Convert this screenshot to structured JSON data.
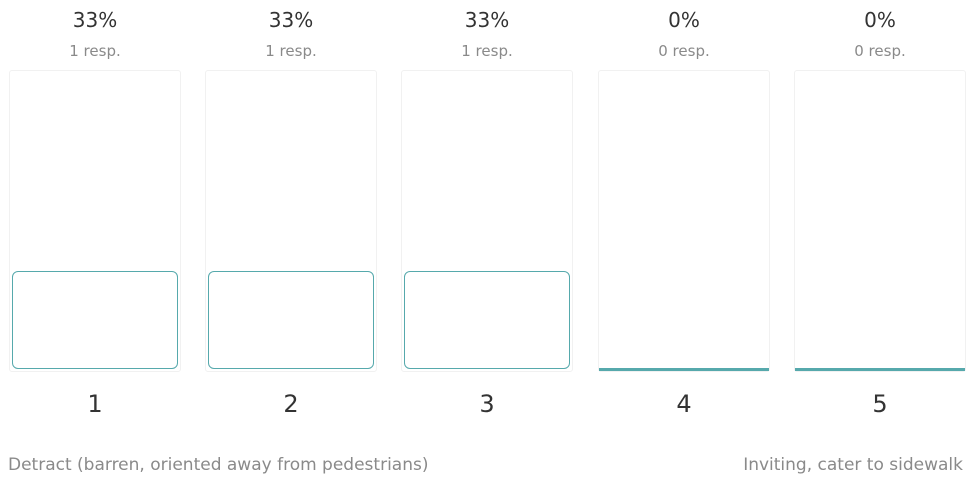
{
  "chart_data": {
    "type": "bar",
    "title": "",
    "xlabel": "",
    "ylabel": "",
    "categories": [
      "1",
      "2",
      "3",
      "4",
      "5"
    ],
    "percent_labels": [
      "33%",
      "33%",
      "33%",
      "0%",
      "0%"
    ],
    "response_labels": [
      "1 resp.",
      "1 resp.",
      "1 resp.",
      "0 resp.",
      "0 resp."
    ],
    "values": [
      33,
      33,
      33,
      0,
      0
    ],
    "ylim": [
      0,
      100
    ],
    "scale_labels": {
      "low": "Detract (barren, oriented away from pedestrians)",
      "high": "Inviting, cater to sidewalk"
    },
    "bar_color": "#56a9ac"
  }
}
